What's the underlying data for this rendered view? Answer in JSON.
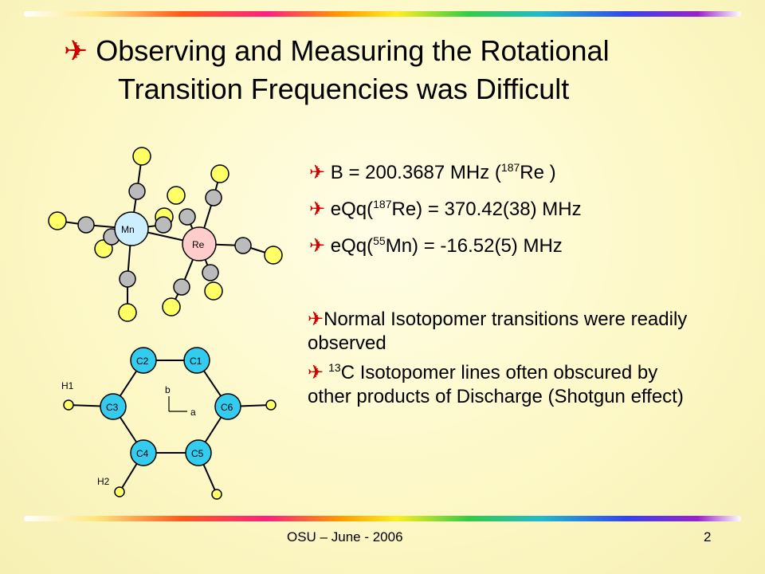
{
  "title": {
    "bullet": "✈",
    "line1": "Observing and Measuring the Rotational",
    "line2": "Transition Frequencies was Difficult"
  },
  "parameters": [
    {
      "bullet": "✈",
      "pre": "B = 200.3687 MHz   (",
      "sup": "187",
      "post": "Re )"
    },
    {
      "bullet": "✈",
      "pre": "eQq(",
      "sup": "187",
      "post": "Re) = 370.42(38) MHz"
    },
    {
      "bullet": "✈",
      "pre": "eQq(",
      "sup": "55",
      "post": "Mn) = -16.52(5) MHz"
    }
  ],
  "notes": {
    "note1": "Normal Isotopomer transitions were  readily observed",
    "note2_sup": "13",
    "note2": "C Isotopomer lines often obscured by other products of Discharge (Shotgun effect)"
  },
  "molecule1": {
    "atom_mn": "Mn",
    "atom_re": "Re"
  },
  "molecule2": {
    "c1": "C1",
    "c2": "C2",
    "c3": "C3",
    "c4": "C4",
    "c5": "C5",
    "c6": "C6",
    "h1": "H1",
    "h2": "H2",
    "axis_a": "a",
    "axis_b": "b"
  },
  "footer": {
    "text": "OSU – June - 2006",
    "page": "2"
  },
  "colors": {
    "bullet": "#cc0000",
    "carbon_ring": "#33ccee",
    "hydrogen": "#ffff66",
    "mn": "#cceeff",
    "re": "#ffcccc"
  }
}
